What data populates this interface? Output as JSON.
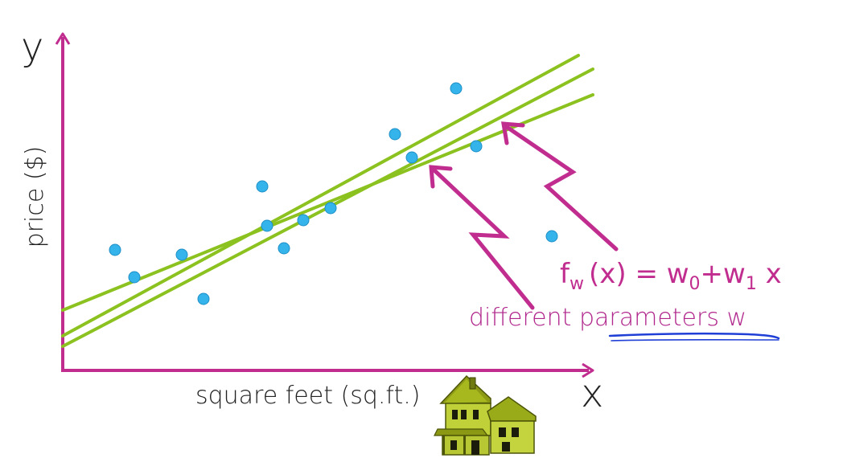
{
  "axes": {
    "y_symbol": "y",
    "x_symbol": "x",
    "y_label": "price ($)",
    "x_label": "square feet (sq.ft.)"
  },
  "formula": {
    "f": "f",
    "f_sub": "w",
    "arg": "(x) = w",
    "w0_sub": "0",
    "plus": "+w",
    "w1_sub": "1",
    "tail": " x"
  },
  "annotation": {
    "prefix": "different ",
    "underlined": "parameters w"
  },
  "colors": {
    "axis": "#c02d8f",
    "fit_line": "#8cc21f",
    "point": "#34b4ea",
    "point_stroke": "#1f8fc7",
    "annotation_text": "#b0268c",
    "underline": "#1f3fd6",
    "text": "#222222"
  },
  "icons": [
    "house-icon"
  ],
  "points": [
    [
      143,
      311
    ],
    [
      167,
      345
    ],
    [
      226,
      317
    ],
    [
      253,
      372
    ],
    [
      326,
      232
    ],
    [
      332,
      281
    ],
    [
      353,
      309
    ],
    [
      377,
      274
    ],
    [
      411,
      259
    ],
    [
      491,
      167
    ],
    [
      512,
      196
    ],
    [
      567,
      110
    ],
    [
      592,
      182
    ],
    [
      686,
      294
    ]
  ],
  "lines": [
    [
      [
        78,
        418
      ],
      [
        719,
        69
      ]
    ],
    [
      [
        78,
        431
      ],
      [
        737,
        86
      ]
    ],
    [
      [
        78,
        386
      ],
      [
        737,
        118
      ]
    ]
  ]
}
